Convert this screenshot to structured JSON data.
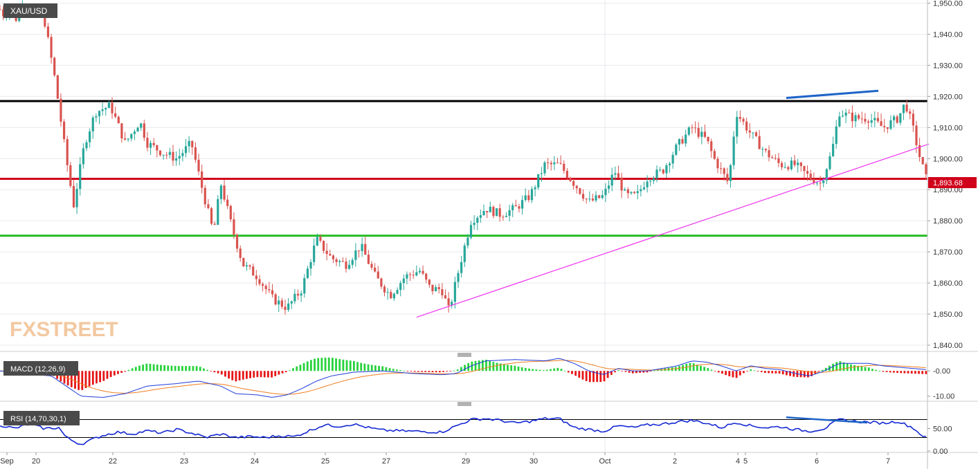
{
  "colors": {
    "bull": "#27a79a",
    "bear": "#d9534f",
    "resistance": "#000000",
    "support_red": "#d0021b",
    "support_green": "#22bb22",
    "trendline": "#ee33ee",
    "divergence": "#1e64c8",
    "macd_line": "#1e3cd8",
    "signal_line": "#f07d1e",
    "hist_pos": "#28d23c",
    "hist_neg": "#e61414",
    "rsi_line": "#1428d2",
    "grid": "#e8eaee",
    "axis_text": "#333333"
  },
  "chart_data": [
    {
      "type": "candlestick",
      "series_name": "XAU/USD",
      "last_price_label": "1,893.68",
      "y_ticks": [
        "1,950.00",
        "1,940.00",
        "1,930.00",
        "1,920.00",
        "1,910.00",
        "1,900.00",
        "1,890.00",
        "1,880.00",
        "1,870.00",
        "1,860.00",
        "1,850.00",
        "1,840.00"
      ],
      "ylim": [
        1838,
        1951
      ],
      "x_ticks": [
        "Sep",
        "20",
        "22",
        "23",
        "24",
        "25",
        "27",
        "29",
        "30",
        "Oct",
        "2",
        "4",
        "5",
        "6",
        "7"
      ],
      "hlines": [
        {
          "name": "resistance",
          "value": 1918.5
        },
        {
          "name": "support-red",
          "value": 1893.5
        },
        {
          "name": "support-green",
          "value": 1875.2
        }
      ],
      "trendline": [
        [
          0.0,
          1849
        ],
        [
          1.0,
          1904.7
        ]
      ],
      "divergence_line": [
        [
          0.0,
          1919.5
        ],
        [
          1.0,
          1921.8
        ]
      ],
      "watermark": "FXSTREET",
      "anchors": [
        [
          0,
          1948
        ],
        [
          0.006,
          1946
        ],
        [
          0.012,
          1950
        ],
        [
          0.02,
          1944
        ],
        [
          0.03,
          1950
        ],
        [
          0.04,
          1948
        ],
        [
          0.06,
          1945
        ],
        [
          0.075,
          1925
        ],
        [
          0.09,
          1900
        ],
        [
          0.1,
          1885
        ],
        [
          0.115,
          1905
        ],
        [
          0.13,
          1915
        ],
        [
          0.15,
          1917
        ],
        [
          0.17,
          1905
        ],
        [
          0.19,
          1912
        ],
        [
          0.2,
          1905
        ],
        [
          0.22,
          1902
        ],
        [
          0.24,
          1900
        ],
        [
          0.26,
          1905
        ],
        [
          0.275,
          1890
        ],
        [
          0.29,
          1876
        ],
        [
          0.3,
          1892
        ],
        [
          0.315,
          1878
        ],
        [
          0.33,
          1866
        ],
        [
          0.35,
          1862
        ],
        [
          0.37,
          1855
        ],
        [
          0.39,
          1852
        ],
        [
          0.41,
          1858
        ],
        [
          0.43,
          1874
        ],
        [
          0.45,
          1868
        ],
        [
          0.47,
          1866
        ],
        [
          0.49,
          1872
        ],
        [
          0.51,
          1862
        ],
        [
          0.53,
          1856
        ],
        [
          0.55,
          1862
        ],
        [
          0.57,
          1864
        ],
        [
          0.585,
          1858
        ],
        [
          0.6,
          1858
        ],
        [
          0.61,
          1851
        ],
        [
          0.625,
          1866
        ],
        [
          0.64,
          1880
        ],
        [
          0.66,
          1884
        ],
        [
          0.68,
          1882
        ],
        [
          0.7,
          1884
        ],
        [
          0.72,
          1888
        ],
        [
          0.74,
          1898
        ],
        [
          0.76,
          1898
        ],
        [
          0.78,
          1892
        ],
        [
          0.8,
          1886
        ],
        [
          0.82,
          1888
        ],
        [
          0.835,
          1896
        ],
        [
          0.85,
          1888
        ],
        [
          0.865,
          1888
        ],
        [
          0.88,
          1894
        ],
        [
          0.9,
          1896
        ],
        [
          0.92,
          1904
        ],
        [
          0.94,
          1910
        ],
        [
          0.96,
          1906
        ],
        [
          0.97,
          1900
        ],
        [
          0.99,
          1892
        ],
        [
          1.0,
          1915
        ],
        [
          1.02,
          1908
        ],
        [
          1.04,
          1902
        ],
        [
          1.06,
          1898
        ],
        [
          1.08,
          1898
        ],
        [
          1.1,
          1894
        ],
        [
          1.115,
          1892
        ],
        [
          1.13,
          1902
        ],
        [
          1.14,
          1915
        ],
        [
          1.16,
          1913
        ],
        [
          1.18,
          1913
        ],
        [
          1.2,
          1910
        ],
        [
          1.22,
          1913
        ],
        [
          1.23,
          1918
        ],
        [
          1.24,
          1910
        ],
        [
          1.25,
          1900
        ],
        [
          1.258,
          1893.68
        ]
      ]
    },
    {
      "type": "macd",
      "label": "MACD (12,26,9)",
      "y_ticks": [
        "-0.00",
        "-10.00"
      ],
      "ylim": [
        -12,
        5
      ],
      "macd_anchors": [
        [
          0,
          0
        ],
        [
          0.03,
          -1
        ],
        [
          0.07,
          -2
        ],
        [
          0.09,
          -6
        ],
        [
          0.11,
          -10
        ],
        [
          0.14,
          -10.5
        ],
        [
          0.17,
          -9
        ],
        [
          0.2,
          -6
        ],
        [
          0.24,
          -5
        ],
        [
          0.27,
          -4
        ],
        [
          0.3,
          -6
        ],
        [
          0.32,
          -9
        ],
        [
          0.35,
          -9.5
        ],
        [
          0.37,
          -10.5
        ],
        [
          0.39,
          -9.5
        ],
        [
          0.41,
          -7
        ],
        [
          0.43,
          -4
        ],
        [
          0.45,
          -2
        ],
        [
          0.48,
          -0.5
        ],
        [
          0.52,
          0
        ],
        [
          0.56,
          -1
        ],
        [
          0.6,
          -1.5
        ],
        [
          0.62,
          -1
        ],
        [
          0.64,
          2
        ],
        [
          0.66,
          4
        ],
        [
          0.7,
          4.5
        ],
        [
          0.74,
          4
        ],
        [
          0.76,
          5
        ],
        [
          0.78,
          3
        ],
        [
          0.8,
          0
        ],
        [
          0.82,
          -1.5
        ],
        [
          0.84,
          1
        ],
        [
          0.86,
          0
        ],
        [
          0.88,
          0
        ],
        [
          0.9,
          1
        ],
        [
          0.92,
          2
        ],
        [
          0.94,
          4
        ],
        [
          0.96,
          3.5
        ],
        [
          0.98,
          2
        ],
        [
          1.0,
          0
        ],
        [
          1.02,
          2
        ],
        [
          1.04,
          1
        ],
        [
          1.06,
          0.5
        ],
        [
          1.08,
          -1
        ],
        [
          1.1,
          -2
        ],
        [
          1.12,
          0
        ],
        [
          1.14,
          3
        ],
        [
          1.16,
          3
        ],
        [
          1.18,
          3
        ],
        [
          1.2,
          2
        ],
        [
          1.22,
          1.5
        ],
        [
          1.24,
          1
        ],
        [
          1.258,
          0.5
        ]
      ]
    },
    {
      "type": "rsi",
      "label": "RSI (14,70,30,1)",
      "y_ticks": [
        "50.00",
        "0.00"
      ],
      "ylim": [
        0,
        100
      ],
      "levels": [
        70,
        30
      ],
      "divergence_line": [
        [
          0.0,
          75
        ],
        [
          1.0,
          63
        ]
      ],
      "rsi_anchors": [
        [
          0,
          58
        ],
        [
          0.02,
          50
        ],
        [
          0.04,
          60
        ],
        [
          0.06,
          50
        ],
        [
          0.08,
          52
        ],
        [
          0.09,
          30
        ],
        [
          0.1,
          22
        ],
        [
          0.11,
          15
        ],
        [
          0.12,
          22
        ],
        [
          0.14,
          35
        ],
        [
          0.16,
          42
        ],
        [
          0.18,
          38
        ],
        [
          0.2,
          45
        ],
        [
          0.22,
          40
        ],
        [
          0.24,
          48
        ],
        [
          0.26,
          40
        ],
        [
          0.28,
          30
        ],
        [
          0.3,
          38
        ],
        [
          0.32,
          30
        ],
        [
          0.34,
          32
        ],
        [
          0.36,
          30
        ],
        [
          0.38,
          34
        ],
        [
          0.4,
          32
        ],
        [
          0.42,
          45
        ],
        [
          0.44,
          58
        ],
        [
          0.46,
          55
        ],
        [
          0.48,
          60
        ],
        [
          0.5,
          52
        ],
        [
          0.52,
          46
        ],
        [
          0.54,
          45
        ],
        [
          0.56,
          44
        ],
        [
          0.58,
          43
        ],
        [
          0.6,
          42
        ],
        [
          0.62,
          56
        ],
        [
          0.64,
          70
        ],
        [
          0.66,
          72
        ],
        [
          0.68,
          68
        ],
        [
          0.7,
          62
        ],
        [
          0.72,
          66
        ],
        [
          0.74,
          72
        ],
        [
          0.76,
          72
        ],
        [
          0.78,
          52
        ],
        [
          0.8,
          48
        ],
        [
          0.82,
          44
        ],
        [
          0.84,
          56
        ],
        [
          0.86,
          52
        ],
        [
          0.88,
          58
        ],
        [
          0.9,
          60
        ],
        [
          0.92,
          65
        ],
        [
          0.94,
          68
        ],
        [
          0.96,
          62
        ],
        [
          0.98,
          52
        ],
        [
          1.0,
          64
        ],
        [
          1.02,
          56
        ],
        [
          1.04,
          52
        ],
        [
          1.06,
          54
        ],
        [
          1.08,
          48
        ],
        [
          1.1,
          44
        ],
        [
          1.12,
          50
        ],
        [
          1.14,
          70
        ],
        [
          1.16,
          66
        ],
        [
          1.18,
          64
        ],
        [
          1.2,
          62
        ],
        [
          1.22,
          66
        ],
        [
          1.24,
          52
        ],
        [
          1.25,
          38
        ],
        [
          1.258,
          30
        ]
      ]
    }
  ]
}
